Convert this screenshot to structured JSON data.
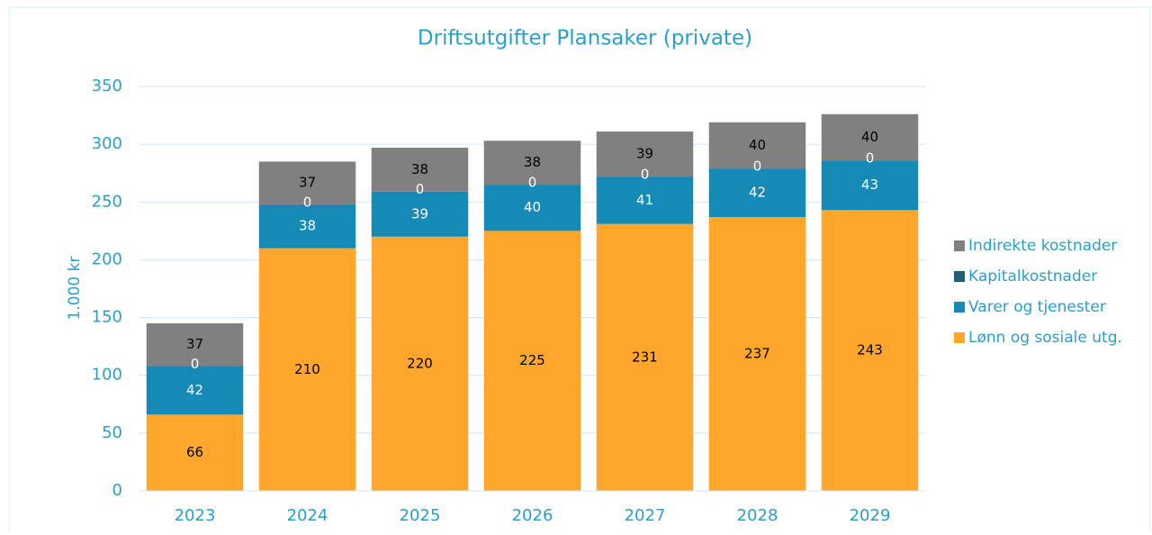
{
  "chart_data": {
    "type": "stacked_bar",
    "title": "Driftsutgifter Plansaker (private)",
    "y_label": "1.000 kr",
    "categories": [
      "2023",
      "2024",
      "2025",
      "2026",
      "2027",
      "2028",
      "2029"
    ],
    "series": [
      {
        "name": "Lønn og sosiale utg.",
        "color": "#ffa62b",
        "values": [
          66,
          210,
          220,
          225,
          231,
          237,
          243
        ]
      },
      {
        "name": "Varer og tjenester",
        "color": "#168ab7",
        "values": [
          42,
          38,
          39,
          40,
          41,
          42,
          43
        ]
      },
      {
        "name": "Kapitalkostnader",
        "color": "#1f5f73",
        "values": [
          0,
          0,
          0,
          0,
          0,
          0,
          0
        ]
      },
      {
        "name": "Indirekte kostnader",
        "color": "#808080",
        "values": [
          37,
          37,
          38,
          38,
          39,
          40,
          40
        ]
      }
    ],
    "ylim": [
      0,
      350
    ],
    "yticks": [
      0,
      50,
      100,
      150,
      200,
      250,
      300,
      350
    ],
    "grid": true,
    "legend": "right"
  }
}
